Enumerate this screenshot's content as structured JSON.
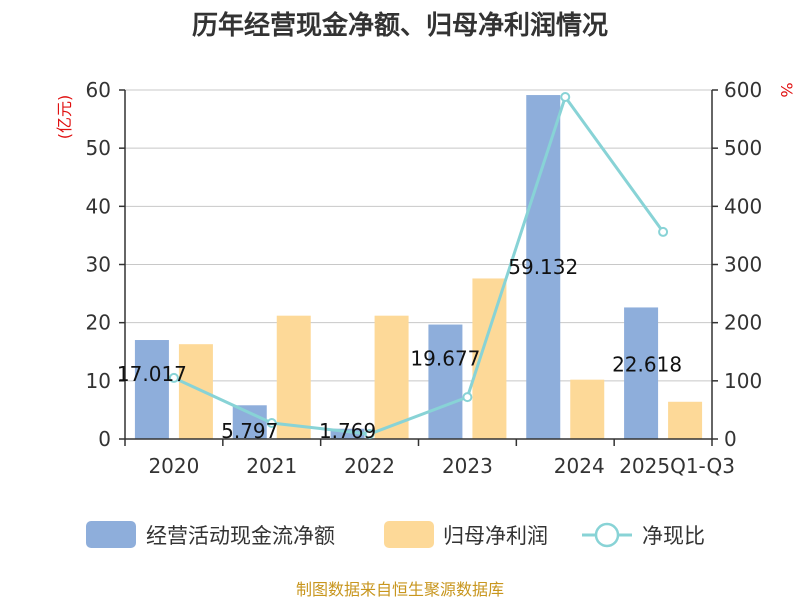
{
  "chart_data": {
    "type": "bar",
    "title": "历年经营现金净额、归母净利润情况",
    "categories": [
      "2020",
      "2021",
      "2022",
      "2023",
      "2024",
      "2025Q1-Q3"
    ],
    "left_axis": {
      "unit": "(亿元)",
      "min": 0,
      "max": 60,
      "ticks": [
        0,
        10,
        20,
        30,
        40,
        50,
        60
      ]
    },
    "right_axis": {
      "unit": "%",
      "min": 0,
      "max": 600,
      "ticks": [
        0,
        100,
        200,
        300,
        400,
        500,
        600
      ]
    },
    "series": [
      {
        "name": "经营活动现金流净额",
        "type": "bar",
        "axis": "left",
        "color": "#8eaedb",
        "values": [
          17.017,
          5.797,
          1.769,
          19.677,
          59.132,
          22.618
        ],
        "labels": [
          "17.017",
          "5.797",
          "1.769",
          "19.677",
          "59.132",
          "22.618"
        ]
      },
      {
        "name": "归母净利润",
        "type": "bar",
        "axis": "left",
        "color": "#fdd998",
        "values": [
          16.3,
          21.2,
          21.2,
          27.6,
          10.2,
          6.4
        ]
      },
      {
        "name": "净现比",
        "type": "line",
        "axis": "right",
        "color": "#88d3d6",
        "values": [
          105,
          27.5,
          8.5,
          72,
          588,
          356
        ]
      }
    ],
    "grid": true,
    "legend_position": "bottom"
  },
  "source": "制图数据来自恒生聚源数据库"
}
